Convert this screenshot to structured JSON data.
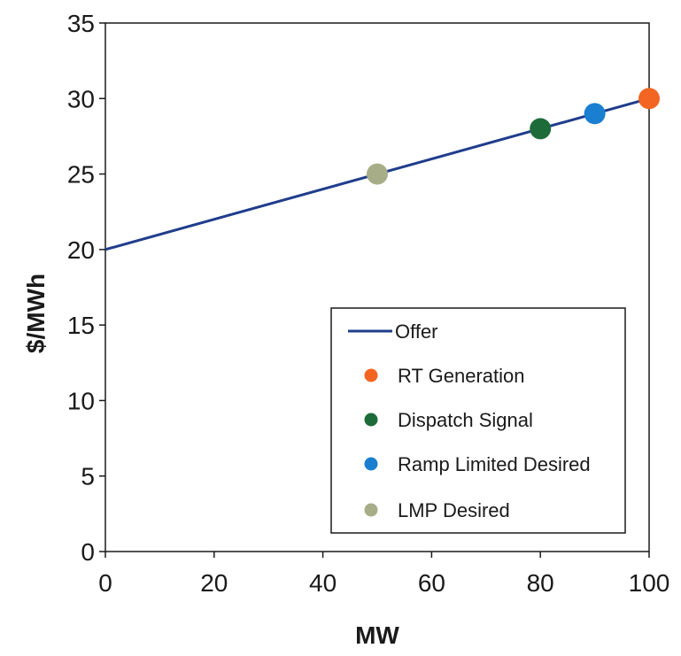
{
  "chart_data": {
    "type": "scatter",
    "title": "",
    "xlabel": "MW",
    "ylabel": "$/MWh",
    "xlim": [
      0,
      100
    ],
    "ylim": [
      0,
      35
    ],
    "x_ticks": [
      "0",
      "20",
      "40",
      "60",
      "80",
      "100"
    ],
    "y_ticks": [
      "0",
      "5",
      "10",
      "15",
      "20",
      "25",
      "30",
      "35"
    ],
    "grid": false,
    "legend_position": "bottom-right",
    "series": [
      {
        "name": "Offer",
        "kind": "line",
        "color": "#1f3d8c",
        "points": [
          {
            "x": 0,
            "y": 20
          },
          {
            "x": 100,
            "y": 30
          }
        ]
      },
      {
        "name": "RT Generation",
        "kind": "point",
        "color": "#f26522",
        "points": [
          {
            "x": 100,
            "y": 30
          }
        ]
      },
      {
        "name": "Dispatch Signal",
        "kind": "point",
        "color": "#1e6b3a",
        "points": [
          {
            "x": 80,
            "y": 28
          }
        ]
      },
      {
        "name": "Ramp Limited Desired",
        "kind": "point",
        "color": "#1a7fd0",
        "points": [
          {
            "x": 90,
            "y": 29
          }
        ]
      },
      {
        "name": "LMP Desired",
        "kind": "point",
        "color": "#a7ad87",
        "points": [
          {
            "x": 50,
            "y": 25
          }
        ]
      }
    ]
  }
}
